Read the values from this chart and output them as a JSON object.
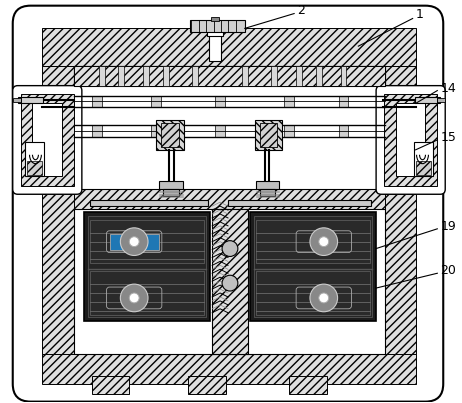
{
  "bg_color": "#ffffff",
  "line_color": "#000000",
  "figsize": [
    4.62,
    4.03
  ],
  "dpi": 100
}
